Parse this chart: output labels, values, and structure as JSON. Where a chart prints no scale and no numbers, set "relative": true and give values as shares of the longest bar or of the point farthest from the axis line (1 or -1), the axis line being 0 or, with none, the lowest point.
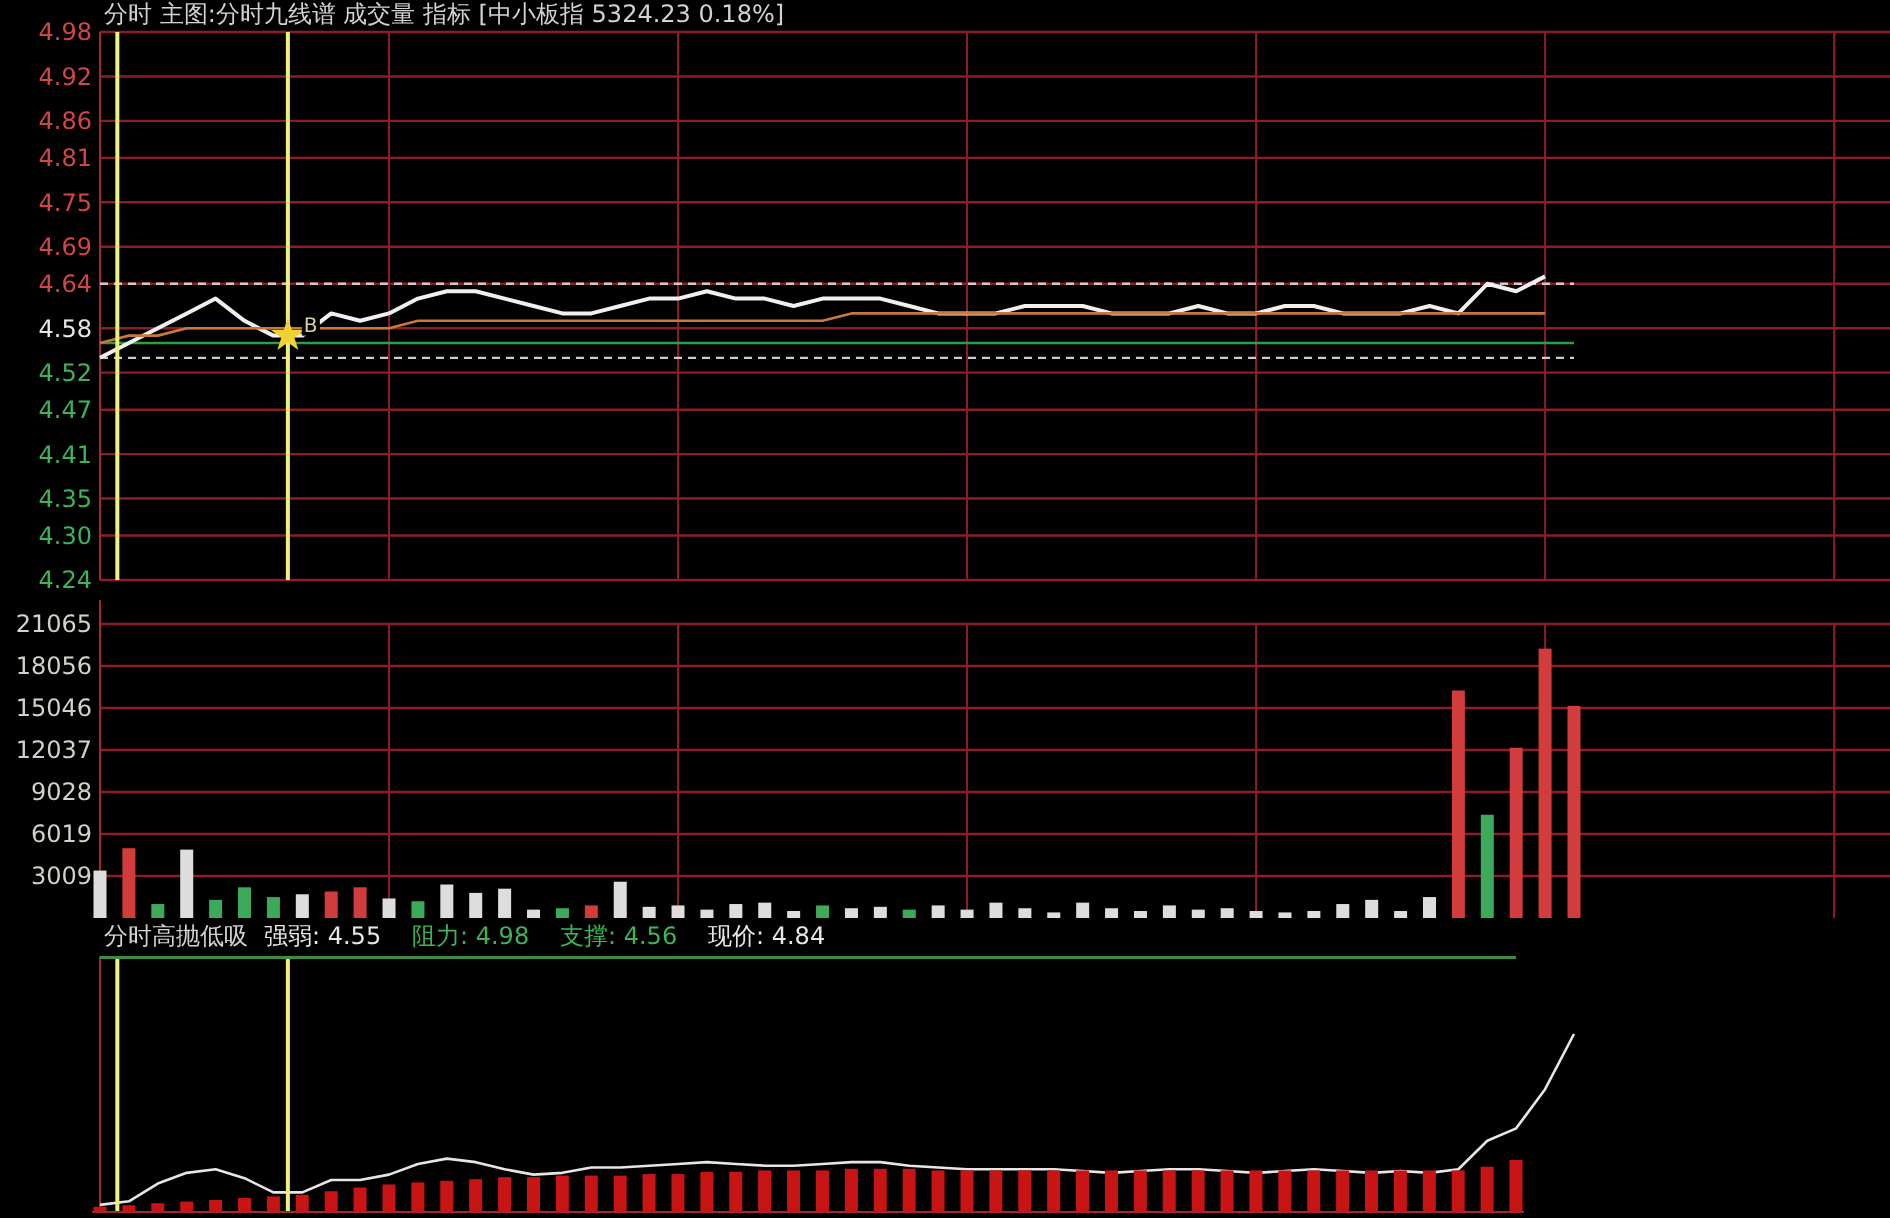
{
  "chart_data": [
    {
      "type": "line",
      "title": "分时 主图:分时九线谱 成交量 指标 [中小板指 5324.23 0.18%]",
      "categories": [
        null,
        null,
        null,
        null,
        null,
        null,
        null,
        null,
        null,
        null,
        null,
        null,
        null,
        null,
        null,
        null,
        null,
        null,
        null,
        null,
        null,
        null,
        null,
        null,
        null,
        null,
        null,
        null,
        null,
        null,
        null,
        null,
        null,
        null,
        null,
        null,
        null,
        null,
        null,
        null,
        null,
        null,
        null,
        null,
        null,
        null,
        null,
        null,
        null,
        null,
        null,
        null
      ],
      "ylim": [
        4.24,
        4.98
      ],
      "yticks": [
        4.98,
        4.92,
        4.86,
        4.81,
        4.75,
        4.69,
        4.64,
        4.58,
        4.52,
        4.47,
        4.41,
        4.35,
        {
          "value": 4.3,
          "label": "4.30"
        },
        4.24
      ],
      "grid": true,
      "series": [
        {
          "color": "#f0f0f0",
          "values": [
            4.54,
            4.56,
            4.58,
            4.6,
            4.62,
            4.59,
            4.57,
            4.57,
            4.6,
            4.59,
            4.6,
            4.62,
            4.63,
            4.63,
            4.62,
            4.61,
            4.6,
            4.6,
            4.61,
            4.62,
            4.62,
            4.63,
            4.62,
            4.62,
            4.61,
            4.62,
            4.62,
            4.62,
            4.61,
            4.6,
            4.6,
            4.6,
            4.61,
            4.61,
            4.61,
            4.6,
            4.6,
            4.6,
            4.61,
            4.6,
            4.6,
            4.61,
            4.61,
            4.6,
            4.6,
            4.6,
            4.61,
            4.6,
            4.64,
            4.63,
            4.65,
            null
          ]
        },
        {
          "color": "#c8783c",
          "values": [
            4.56,
            4.57,
            4.57,
            4.58,
            4.58,
            4.58,
            4.58,
            4.58,
            4.58,
            4.58,
            4.58,
            4.59,
            4.59,
            4.59,
            4.59,
            4.59,
            4.59,
            4.59,
            4.59,
            4.59,
            4.59,
            4.59,
            4.59,
            4.59,
            4.59,
            4.59,
            4.6,
            4.6,
            4.6,
            4.6,
            4.6,
            4.6,
            4.6,
            4.6,
            4.6,
            4.6,
            4.6,
            4.6,
            4.6,
            4.6,
            4.6,
            4.6,
            4.6,
            4.6,
            4.6,
            4.6,
            4.6,
            4.6,
            4.6,
            4.6,
            4.6,
            null
          ]
        }
      ],
      "ref_lines": [
        {
          "axis": "y",
          "value": 4.64,
          "color": "#cccccc",
          "line_style": "dashed"
        },
        {
          "axis": "y",
          "value": 4.56,
          "color": "#2e9e3e",
          "line_style": "solid"
        },
        {
          "axis": "y",
          "value": 4.54,
          "color": "#cccccc",
          "line_style": "dashed"
        }
      ],
      "annotations": [
        "B"
      ]
    },
    {
      "type": "bar",
      "categories": [
        null,
        null,
        null,
        null,
        null,
        null,
        null,
        null,
        null,
        null,
        null,
        null,
        null,
        null,
        null,
        null,
        null,
        null,
        null,
        null,
        null,
        null,
        null,
        null,
        null,
        null,
        null,
        null,
        null,
        null,
        null,
        null,
        null,
        null,
        null,
        null,
        null,
        null,
        null,
        null,
        null,
        null,
        null,
        null,
        null,
        null,
        null,
        null,
        null,
        null,
        null,
        null
      ],
      "ylim": [
        0,
        21065
      ],
      "yticks": [
        3009,
        6019,
        9028,
        12037,
        15046,
        18056,
        21065
      ],
      "grid": true,
      "values": [
        3400,
        5000,
        1000,
        4900,
        1300,
        2200,
        1500,
        1700,
        1900,
        2200,
        1400,
        1200,
        2400,
        1800,
        2100,
        600,
        700,
        900,
        2600,
        800,
        900,
        600,
        1000,
        1100,
        500,
        900,
        700,
        800,
        600,
        900,
        600,
        1100,
        700,
        400,
        1100,
        700,
        500,
        900,
        600,
        700,
        500,
        400,
        500,
        1000,
        1300,
        500,
        1500,
        16300,
        7400,
        12200,
        19300,
        15200
      ],
      "colors": [
        "#dddddd",
        "#d23c3c",
        "#3caa5a",
        "#dddddd",
        "#3caa5a",
        "#3caa5a",
        "#3caa5a",
        "#dddddd",
        "#d23c3c",
        "#d23c3c",
        "#dddddd",
        "#3caa5a",
        "#dddddd",
        "#dddddd",
        "#dddddd",
        "#dddddd",
        "#3caa5a",
        "#d23c3c",
        "#dddddd",
        "#dddddd",
        "#dddddd",
        "#dddddd",
        "#dddddd",
        "#dddddd",
        "#dddddd",
        "#3caa5a",
        "#dddddd",
        "#dddddd",
        "#3caa5a",
        "#dddddd",
        "#dddddd",
        "#dddddd",
        "#dddddd",
        "#dddddd",
        "#dddddd",
        "#dddddd",
        "#dddddd",
        "#dddddd",
        "#dddddd",
        "#dddddd",
        "#dddddd",
        "#dddddd",
        "#dddddd",
        "#dddddd",
        "#dddddd",
        "#dddddd",
        "#dddddd",
        "#d23c3c",
        "#3caa5a",
        "#d23c3c",
        "#d23c3c",
        "#d23c3c"
      ]
    },
    {
      "type": "bar",
      "title": "分时高抛低吸",
      "annotations": [
        "强弱: 4.55",
        "阻力: 4.98",
        "支撑: 4.56",
        "现价: 4.84"
      ],
      "relative": true,
      "categories": [
        null,
        null,
        null,
        null,
        null,
        null,
        null,
        null,
        null,
        null,
        null,
        null,
        null,
        null,
        null,
        null,
        null,
        null,
        null,
        null,
        null,
        null,
        null,
        null,
        null,
        null,
        null,
        null,
        null,
        null,
        null,
        null,
        null,
        null,
        null,
        null,
        null,
        null,
        null,
        null,
        null,
        null,
        null,
        null,
        null,
        null,
        null,
        null,
        null,
        null
      ],
      "color": "#c81414",
      "values": [
        0.1,
        0.13,
        0.17,
        0.2,
        0.23,
        0.27,
        0.3,
        0.33,
        0.4,
        0.47,
        0.53,
        0.57,
        0.6,
        0.63,
        0.67,
        0.67,
        0.7,
        0.7,
        0.7,
        0.73,
        0.73,
        0.77,
        0.77,
        0.8,
        0.8,
        0.8,
        0.83,
        0.83,
        0.83,
        0.8,
        0.8,
        0.8,
        0.8,
        0.8,
        0.8,
        0.8,
        0.8,
        0.8,
        0.8,
        0.8,
        0.8,
        0.8,
        0.8,
        0.8,
        0.8,
        0.8,
        0.8,
        0.8,
        0.87,
        1
      ]
    },
    {
      "type": "line",
      "relative": true,
      "categories": [
        null,
        null,
        null,
        null,
        null,
        null,
        null,
        null,
        null,
        null,
        null,
        null,
        null,
        null,
        null,
        null,
        null,
        null,
        null,
        null,
        null,
        null,
        null,
        null,
        null,
        null,
        null,
        null,
        null,
        null,
        null,
        null,
        null,
        null,
        null,
        null,
        null,
        null,
        null,
        null,
        null,
        null,
        null,
        null,
        null,
        null,
        null,
        null,
        null,
        null,
        null,
        null
      ],
      "series": [
        {
          "color": "#e6e6e6",
          "values": [
            0.04,
            0.06,
            0.16,
            0.22,
            0.24,
            0.19,
            0.11,
            0.11,
            0.18,
            0.18,
            0.21,
            0.27,
            0.3,
            0.28,
            0.24,
            0.21,
            0.22,
            0.25,
            0.25,
            0.26,
            0.27,
            0.28,
            0.27,
            0.26,
            0.26,
            0.27,
            0.28,
            0.28,
            0.26,
            0.25,
            0.24,
            0.24,
            0.24,
            0.24,
            0.23,
            0.22,
            0.23,
            0.24,
            0.24,
            0.23,
            0.22,
            0.23,
            0.24,
            0.23,
            0.22,
            0.23,
            0.22,
            0.24,
            0.4,
            0.47,
            0.69,
            1
          ]
        }
      ]
    }
  ]
}
